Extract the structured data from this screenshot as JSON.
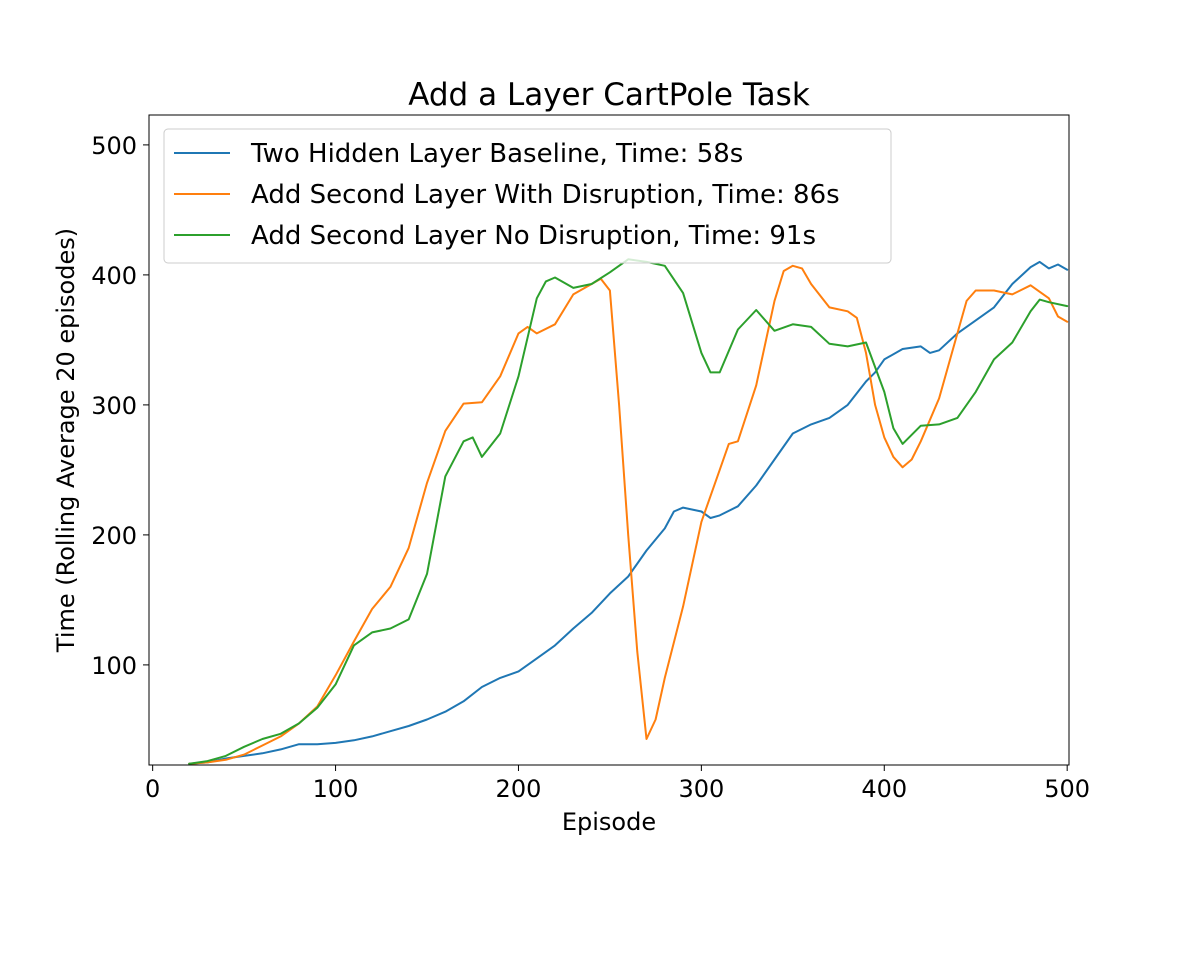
{
  "chart_data": {
    "type": "line",
    "title": "Add a Layer CartPole Task",
    "xlabel": "Episode",
    "ylabel": "Time (Rolling Average 20 episodes)",
    "xlim": [
      -2,
      501
    ],
    "ylim": [
      23,
      523
    ],
    "xticks": [
      0,
      100,
      200,
      300,
      400,
      500
    ],
    "yticks": [
      100,
      200,
      300,
      400,
      500
    ],
    "grid": false,
    "legend_position": "top-left",
    "series": [
      {
        "name": "Two Hidden Layer Baseline, Time: 58s",
        "color": "#1f77b4",
        "points": [
          [
            20,
            24
          ],
          [
            30,
            25
          ],
          [
            40,
            28
          ],
          [
            50,
            30
          ],
          [
            60,
            32
          ],
          [
            70,
            35
          ],
          [
            80,
            39
          ],
          [
            90,
            39
          ],
          [
            100,
            40
          ],
          [
            110,
            42
          ],
          [
            120,
            45
          ],
          [
            130,
            49
          ],
          [
            140,
            53
          ],
          [
            150,
            58
          ],
          [
            160,
            64
          ],
          [
            170,
            72
          ],
          [
            180,
            83
          ],
          [
            190,
            90
          ],
          [
            200,
            95
          ],
          [
            210,
            105
          ],
          [
            220,
            115
          ],
          [
            230,
            128
          ],
          [
            240,
            140
          ],
          [
            250,
            155
          ],
          [
            260,
            168
          ],
          [
            270,
            188
          ],
          [
            280,
            205
          ],
          [
            285,
            218
          ],
          [
            290,
            221
          ],
          [
            300,
            218
          ],
          [
            305,
            213
          ],
          [
            310,
            215
          ],
          [
            320,
            222
          ],
          [
            330,
            238
          ],
          [
            340,
            258
          ],
          [
            350,
            278
          ],
          [
            360,
            285
          ],
          [
            370,
            290
          ],
          [
            380,
            300
          ],
          [
            390,
            318
          ],
          [
            395,
            325
          ],
          [
            400,
            335
          ],
          [
            410,
            343
          ],
          [
            420,
            345
          ],
          [
            425,
            340
          ],
          [
            430,
            342
          ],
          [
            440,
            355
          ],
          [
            450,
            365
          ],
          [
            460,
            375
          ],
          [
            470,
            393
          ],
          [
            480,
            406
          ],
          [
            485,
            410
          ],
          [
            490,
            405
          ],
          [
            495,
            408
          ],
          [
            500,
            404
          ]
        ]
      },
      {
        "name": "Add Second Layer With Disruption, Time: 86s",
        "color": "#ff7f0e",
        "points": [
          [
            20,
            24
          ],
          [
            30,
            25
          ],
          [
            40,
            27
          ],
          [
            50,
            31
          ],
          [
            60,
            38
          ],
          [
            70,
            45
          ],
          [
            80,
            55
          ],
          [
            90,
            68
          ],
          [
            100,
            92
          ],
          [
            110,
            118
          ],
          [
            120,
            143
          ],
          [
            130,
            160
          ],
          [
            140,
            190
          ],
          [
            150,
            240
          ],
          [
            160,
            280
          ],
          [
            170,
            301
          ],
          [
            180,
            302
          ],
          [
            190,
            322
          ],
          [
            200,
            355
          ],
          [
            205,
            360
          ],
          [
            210,
            355
          ],
          [
            220,
            362
          ],
          [
            230,
            385
          ],
          [
            240,
            393
          ],
          [
            245,
            397
          ],
          [
            250,
            388
          ],
          [
            255,
            300
          ],
          [
            260,
            200
          ],
          [
            265,
            110
          ],
          [
            270,
            43
          ],
          [
            275,
            58
          ],
          [
            280,
            90
          ],
          [
            290,
            145
          ],
          [
            300,
            210
          ],
          [
            310,
            250
          ],
          [
            315,
            270
          ],
          [
            320,
            272
          ],
          [
            330,
            315
          ],
          [
            340,
            380
          ],
          [
            345,
            403
          ],
          [
            350,
            407
          ],
          [
            355,
            405
          ],
          [
            360,
            393
          ],
          [
            370,
            375
          ],
          [
            380,
            372
          ],
          [
            385,
            367
          ],
          [
            390,
            340
          ],
          [
            395,
            300
          ],
          [
            400,
            275
          ],
          [
            405,
            260
          ],
          [
            410,
            252
          ],
          [
            415,
            258
          ],
          [
            420,
            272
          ],
          [
            430,
            305
          ],
          [
            440,
            355
          ],
          [
            445,
            380
          ],
          [
            450,
            388
          ],
          [
            460,
            388
          ],
          [
            470,
            385
          ],
          [
            480,
            392
          ],
          [
            490,
            382
          ],
          [
            495,
            368
          ],
          [
            500,
            364
          ]
        ]
      },
      {
        "name": "Add Second Layer No Disruption, Time: 91s",
        "color": "#2ca02c",
        "points": [
          [
            20,
            24
          ],
          [
            30,
            26
          ],
          [
            40,
            30
          ],
          [
            50,
            37
          ],
          [
            60,
            43
          ],
          [
            70,
            47
          ],
          [
            80,
            55
          ],
          [
            90,
            67
          ],
          [
            100,
            85
          ],
          [
            110,
            115
          ],
          [
            120,
            125
          ],
          [
            130,
            128
          ],
          [
            140,
            135
          ],
          [
            150,
            170
          ],
          [
            160,
            245
          ],
          [
            170,
            272
          ],
          [
            175,
            275
          ],
          [
            180,
            260
          ],
          [
            190,
            278
          ],
          [
            200,
            322
          ],
          [
            210,
            382
          ],
          [
            215,
            395
          ],
          [
            220,
            398
          ],
          [
            230,
            390
          ],
          [
            240,
            393
          ],
          [
            250,
            402
          ],
          [
            260,
            412
          ],
          [
            270,
            410
          ],
          [
            280,
            407
          ],
          [
            290,
            386
          ],
          [
            300,
            340
          ],
          [
            305,
            325
          ],
          [
            310,
            325
          ],
          [
            320,
            358
          ],
          [
            330,
            373
          ],
          [
            340,
            357
          ],
          [
            350,
            362
          ],
          [
            360,
            360
          ],
          [
            370,
            347
          ],
          [
            380,
            345
          ],
          [
            390,
            348
          ],
          [
            400,
            310
          ],
          [
            405,
            282
          ],
          [
            410,
            270
          ],
          [
            420,
            284
          ],
          [
            430,
            285
          ],
          [
            440,
            290
          ],
          [
            450,
            310
          ],
          [
            460,
            335
          ],
          [
            470,
            348
          ],
          [
            480,
            372
          ],
          [
            485,
            381
          ],
          [
            490,
            379
          ],
          [
            500,
            376
          ]
        ]
      }
    ]
  }
}
